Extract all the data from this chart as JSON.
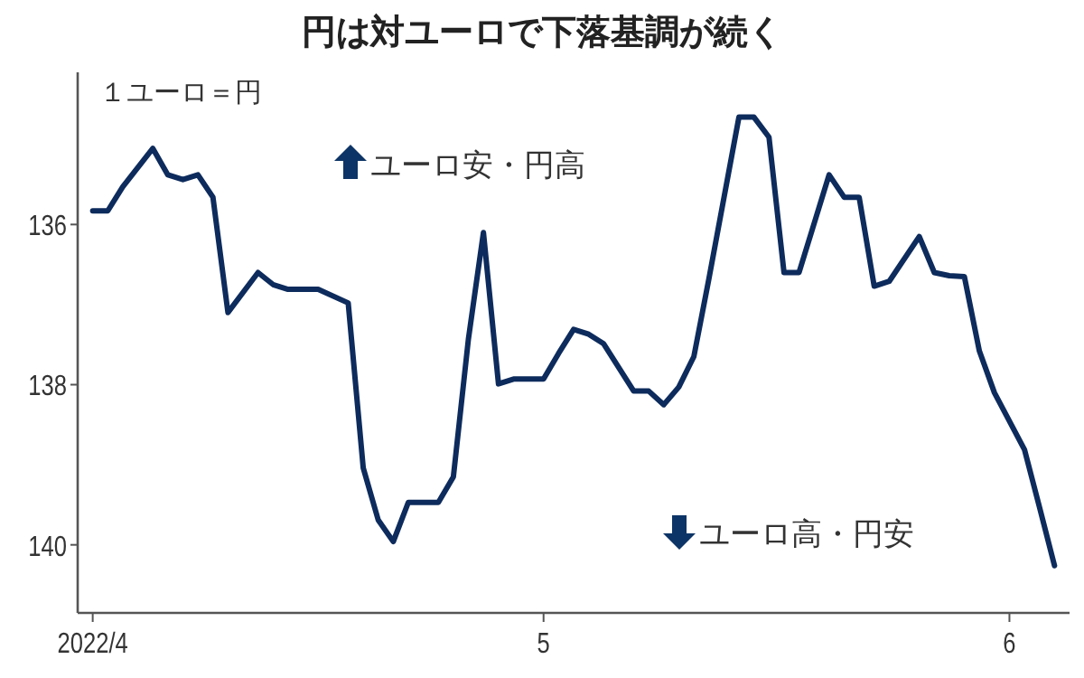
{
  "chart_data": {
    "type": "line",
    "title": "円は対ユーロで下落基調が続く",
    "ylabel": "１ユーロ＝円",
    "annotations": [
      "ユーロ安・円高",
      "ユーロ高・円安"
    ],
    "x": [
      "2022-04-01",
      "2022-04-02",
      "2022-04-03",
      "2022-04-05",
      "2022-04-06",
      "2022-04-07",
      "2022-04-08",
      "2022-04-09",
      "2022-04-10",
      "2022-04-12",
      "2022-04-13",
      "2022-04-14",
      "2022-04-15",
      "2022-04-16",
      "2022-04-18",
      "2022-04-19",
      "2022-04-20",
      "2022-04-21",
      "2022-04-22",
      "2022-04-24",
      "2022-04-25",
      "2022-04-26",
      "2022-04-27",
      "2022-04-28",
      "2022-04-29",
      "2022-05-01",
      "2022-05-02",
      "2022-05-03",
      "2022-05-04",
      "2022-05-05",
      "2022-05-07",
      "2022-05-08",
      "2022-05-09",
      "2022-05-10",
      "2022-05-11",
      "2022-05-12",
      "2022-05-14",
      "2022-05-15",
      "2022-05-16",
      "2022-05-17",
      "2022-05-18",
      "2022-05-20",
      "2022-05-21",
      "2022-05-22",
      "2022-05-23",
      "2022-05-24",
      "2022-05-26",
      "2022-05-27",
      "2022-05-28",
      "2022-05-29",
      "2022-05-30",
      "2022-05-31",
      "2022-06-02",
      "2022-06-03",
      "2022-06-04"
    ],
    "series": [
      {
        "color": "#0d2b5c",
        "values": [
          135.83,
          135.83,
          135.53,
          135.05,
          135.38,
          135.44,
          135.38,
          135.66,
          137.1,
          136.6,
          136.75,
          136.81,
          136.81,
          136.81,
          136.98,
          139.04,
          139.69,
          139.96,
          139.47,
          139.47,
          139.15,
          137.43,
          136.1,
          137.99,
          137.93,
          137.93,
          137.61,
          137.31,
          137.37,
          137.49,
          138.08,
          138.08,
          138.25,
          138.03,
          137.65,
          136.68,
          134.66,
          134.66,
          134.91,
          136.6,
          136.6,
          135.38,
          135.66,
          135.66,
          136.77,
          136.71,
          136.15,
          136.6,
          136.64,
          136.65,
          137.58,
          138.1,
          138.81,
          139.53,
          140.26
        ]
      }
    ],
    "xlim": [
      "2022-03-31",
      "2022-06-05"
    ],
    "xticks": [
      {
        "value": "2022-04-01",
        "label": "2022/4"
      },
      {
        "value": "2022-05-01",
        "label": "5"
      },
      {
        "value": "2022-06-01",
        "label": "6"
      }
    ],
    "ylim": [
      140.85,
      134.1
    ],
    "yticks": [
      136,
      138,
      140
    ],
    "marker": "none",
    "line_style": "solid",
    "grid": false
  }
}
